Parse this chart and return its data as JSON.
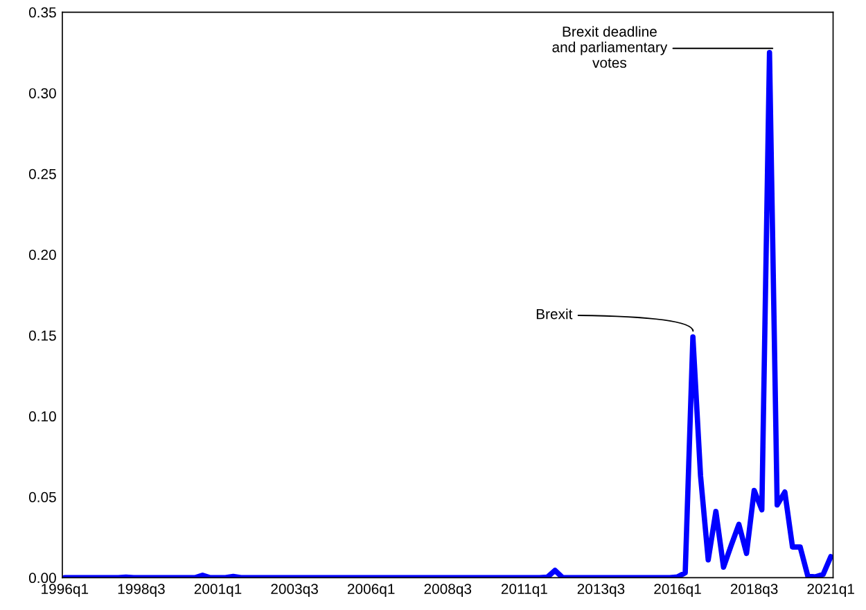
{
  "chart_data": {
    "type": "line",
    "categories": [
      "1996q1",
      null,
      null,
      null,
      null,
      null,
      null,
      null,
      null,
      null,
      "1998q3",
      null,
      null,
      null,
      null,
      null,
      null,
      null,
      null,
      null,
      "2001q1",
      null,
      null,
      null,
      null,
      null,
      null,
      null,
      null,
      null,
      "2003q3",
      null,
      null,
      null,
      null,
      null,
      null,
      null,
      null,
      null,
      "2006q1",
      null,
      null,
      null,
      null,
      null,
      null,
      null,
      null,
      null,
      "2008q3",
      null,
      null,
      null,
      null,
      null,
      null,
      null,
      null,
      null,
      "2011q1",
      null,
      null,
      null,
      null,
      null,
      null,
      null,
      null,
      null,
      "2013q3",
      null,
      null,
      null,
      null,
      null,
      null,
      null,
      null,
      null,
      "2016q1",
      null,
      null,
      null,
      null,
      null,
      null,
      null,
      null,
      null,
      "2018q3",
      null,
      null,
      null,
      null,
      null,
      null,
      null,
      null,
      null,
      "2021q1"
    ],
    "series": [
      {
        "color": "#0000ff",
        "values": [
          0,
          0,
          0,
          0,
          0,
          0,
          0,
          0,
          0.0003,
          0,
          0,
          0,
          0,
          0,
          0,
          0,
          0,
          0,
          0.0015,
          0,
          0,
          0,
          0.0008,
          0,
          0,
          0,
          0,
          0,
          0,
          0,
          0,
          0,
          0,
          0,
          0,
          0,
          0,
          0,
          0,
          0,
          0,
          0,
          0,
          0,
          0,
          0,
          0,
          0,
          0,
          0,
          0,
          0,
          0,
          0,
          0,
          0,
          0,
          0,
          0,
          0,
          0,
          0,
          0,
          0.0003,
          0.0045,
          0,
          0,
          0,
          0,
          0,
          0,
          0,
          0,
          0,
          0,
          0,
          0,
          0,
          0,
          0,
          0.0005,
          0.003,
          0.149,
          0.063,
          0.011,
          0.041,
          0.0065,
          0.02,
          0.033,
          0.015,
          0.054,
          0.042,
          0.325,
          0.045,
          0.053,
          0.019,
          0.019,
          0.001,
          0.0005,
          0.002,
          0.013
        ]
      }
    ],
    "ylim": [
      0,
      0.35
    ],
    "yticks": [
      {
        "value": 0,
        "label": "0.00"
      },
      {
        "value": 0.05,
        "label": "0.05"
      },
      {
        "value": 0.1,
        "label": "0.10"
      },
      {
        "value": 0.15,
        "label": "0.15"
      },
      {
        "value": 0.2,
        "label": "0.20"
      },
      {
        "value": 0.25,
        "label": "0.25"
      },
      {
        "value": 0.3,
        "label": "0.30"
      },
      {
        "value": 0.35,
        "label": "0.35"
      }
    ],
    "grid": false,
    "marker": "none",
    "line_style": "solid",
    "annotations": [
      "Brexit",
      "Brexit deadline\nand parliamentary\nvotes"
    ]
  }
}
